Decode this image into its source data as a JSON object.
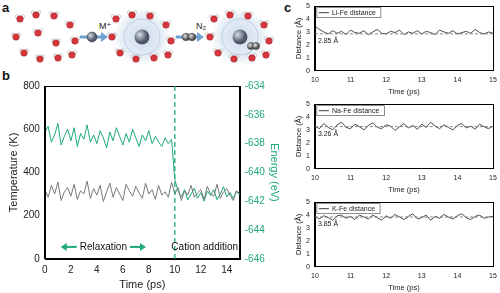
{
  "panel_labels": [
    "a",
    "b",
    "c"
  ],
  "diagram": {
    "labels": [
      "M⁺",
      "N₂"
    ]
  },
  "chart_data": [
    {
      "type": "line",
      "x": [
        0,
        0.25,
        0.5,
        0.75,
        1,
        1.25,
        1.5,
        1.75,
        2,
        2.25,
        2.5,
        2.75,
        3,
        3.25,
        3.5,
        3.75,
        4,
        4.25,
        4.5,
        4.75,
        5,
        5.25,
        5.5,
        5.75,
        6,
        6.25,
        6.5,
        6.75,
        7,
        7.25,
        7.5,
        7.75,
        8,
        8.25,
        8.5,
        8.75,
        9,
        9.25,
        9.5,
        9.75,
        10,
        10.25,
        10.5,
        10.75,
        11,
        11.25,
        11.5,
        11.75,
        12,
        12.25,
        12.5,
        12.75,
        13,
        13.25,
        13.5,
        13.75,
        14,
        14.25,
        14.5,
        14.75,
        15
      ],
      "xlabel": "Time (ps)",
      "ylabel": "Temperature (K)",
      "y2label": "Energy (eV)",
      "xlim": [
        0,
        15
      ],
      "xticks": [
        0,
        2,
        4,
        6,
        8,
        10,
        12,
        14
      ],
      "ylim": [
        0,
        800
      ],
      "yticks": [
        0,
        200,
        400,
        600,
        800
      ],
      "y2lim": [
        -646,
        -634
      ],
      "y2ticks": [
        -646,
        -644,
        -642,
        -640,
        -638,
        -636,
        -634
      ],
      "grid": false,
      "series": [
        {
          "color": "#7a7a7a",
          "values": [
            320,
            285,
            340,
            300,
            355,
            270,
            310,
            330,
            290,
            345,
            275,
            315,
            300,
            360,
            280,
            325,
            295,
            340,
            265,
            310,
            350,
            285,
            330,
            300,
            270,
            345,
            315,
            290,
            335,
            305,
            280,
            350,
            300,
            320,
            275,
            340,
            295,
            310,
            285,
            355,
            300,
            330,
            270,
            315,
            295,
            340,
            285,
            305,
            320,
            275,
            335,
            300,
            290,
            345,
            280,
            310,
            325,
            295,
            270,
            315,
            300
          ]
        },
        {
          "color": "#1fa97c",
          "axis": "y2",
          "values": [
            -637.2,
            -636.8,
            -637.9,
            -637.4,
            -636.6,
            -638.1,
            -637.5,
            -637.0,
            -637.8,
            -636.9,
            -638.2,
            -637.3,
            -637.7,
            -636.7,
            -637.9,
            -637.4,
            -638.0,
            -637.1,
            -637.6,
            -638.3,
            -637.2,
            -637.8,
            -636.9,
            -637.5,
            -638.1,
            -637.3,
            -637.9,
            -637.0,
            -637.6,
            -638.2,
            -637.4,
            -637.8,
            -637.1,
            -638.0,
            -637.5,
            -637.9,
            -638.2,
            -637.6,
            -638.0,
            -637.7,
            -640.5,
            -641.3,
            -641.7,
            -641.2,
            -641.9,
            -641.5,
            -641.1,
            -641.8,
            -641.4,
            -642.0,
            -641.3,
            -641.6,
            -641.2,
            -641.9,
            -641.5,
            -641.0,
            -641.7,
            -641.4,
            -641.8,
            -641.3,
            -641.6
          ]
        }
      ],
      "annotations": [
        {
          "type": "vline",
          "x": 10
        },
        {
          "text": "Relaxation",
          "x": 4.5,
          "y": 55
        },
        {
          "text": "Cation addition",
          "x": 12.3,
          "y": 55
        }
      ]
    },
    {
      "type": "line",
      "x": [
        10,
        10.125,
        10.25,
        10.375,
        10.5,
        10.625,
        10.75,
        10.875,
        11,
        11.125,
        11.25,
        11.375,
        11.5,
        11.625,
        11.75,
        11.875,
        12,
        12.125,
        12.25,
        12.375,
        12.5,
        12.625,
        12.75,
        12.875,
        13,
        13.125,
        13.25,
        13.375,
        13.5,
        13.625,
        13.75,
        13.875,
        14,
        14.125,
        14.25,
        14.375,
        14.5,
        14.625,
        14.75,
        14.875,
        15
      ],
      "xlabel": "Time (ps)",
      "ylabel": "Distance (Å)",
      "xlim": [
        10,
        15
      ],
      "xticks": [
        10,
        11,
        12,
        13,
        14,
        15
      ],
      "ylim": [
        0,
        5
      ],
      "yticks": [
        0,
        1,
        2,
        3,
        4,
        5
      ],
      "grid": false,
      "legend": "upper left",
      "series": [
        {
          "name": "Li-Fe distance",
          "color": "#3a3a3a",
          "values": [
            3.45,
            3.2,
            3.0,
            2.85,
            3.1,
            2.9,
            3.05,
            2.8,
            3.15,
            2.95,
            2.9,
            3.1,
            2.8,
            3.0,
            3.2,
            2.9,
            2.85,
            3.05,
            2.95,
            3.15,
            2.8,
            3.0,
            2.9,
            3.1,
            2.85,
            3.05,
            2.95,
            2.8,
            3.15,
            3.0,
            2.9,
            3.1,
            2.85,
            2.95,
            3.05,
            2.9,
            3.2,
            2.95,
            2.85,
            3.0,
            2.9
          ]
        }
      ],
      "annotations": [
        {
          "type": "hline",
          "y": 2.85,
          "text": "2.85 Å"
        }
      ]
    },
    {
      "type": "line",
      "x": [
        10,
        10.125,
        10.25,
        10.375,
        10.5,
        10.625,
        10.75,
        10.875,
        11,
        11.125,
        11.25,
        11.375,
        11.5,
        11.625,
        11.75,
        11.875,
        12,
        12.125,
        12.25,
        12.375,
        12.5,
        12.625,
        12.75,
        12.875,
        13,
        13.125,
        13.25,
        13.375,
        13.5,
        13.625,
        13.75,
        13.875,
        14,
        14.125,
        14.25,
        14.375,
        14.5,
        14.625,
        14.75,
        14.875,
        15
      ],
      "xlabel": "Time (ps)",
      "ylabel": "Distance (Å)",
      "xlim": [
        10,
        15
      ],
      "xticks": [
        10,
        11,
        12,
        13,
        14,
        15
      ],
      "ylim": [
        0,
        5
      ],
      "yticks": [
        0,
        1,
        2,
        3,
        4,
        5
      ],
      "grid": false,
      "legend": "upper left",
      "series": [
        {
          "name": "Na-Fe distance",
          "color": "#3a3a3a",
          "values": [
            3.3,
            3.1,
            3.5,
            3.2,
            3.0,
            3.4,
            3.6,
            3.2,
            3.1,
            3.45,
            3.25,
            3.0,
            3.35,
            3.55,
            3.2,
            3.1,
            3.4,
            3.3,
            2.95,
            3.25,
            3.5,
            3.15,
            3.35,
            3.05,
            3.45,
            3.2,
            3.6,
            3.3,
            3.1,
            3.4,
            3.2,
            3.0,
            3.35,
            3.5,
            3.15,
            3.3,
            3.05,
            3.45,
            3.25,
            3.1,
            3.3
          ]
        }
      ],
      "annotations": [
        {
          "type": "hline",
          "y": 3.26,
          "text": "3.26 Å"
        }
      ]
    },
    {
      "type": "line",
      "x": [
        10,
        10.125,
        10.25,
        10.375,
        10.5,
        10.625,
        10.75,
        10.875,
        11,
        11.125,
        11.25,
        11.375,
        11.5,
        11.625,
        11.75,
        11.875,
        12,
        12.125,
        12.25,
        12.375,
        12.5,
        12.625,
        12.75,
        12.875,
        13,
        13.125,
        13.25,
        13.375,
        13.5,
        13.625,
        13.75,
        13.875,
        14,
        14.125,
        14.25,
        14.375,
        14.5,
        14.625,
        14.75,
        14.875,
        15
      ],
      "xlabel": "Time (ps)",
      "ylabel": "Distance (Å)",
      "xlim": [
        10,
        15
      ],
      "xticks": [
        10,
        11,
        12,
        13,
        14,
        15
      ],
      "ylim": [
        0,
        5
      ],
      "yticks": [
        0,
        1,
        2,
        3,
        4,
        5
      ],
      "grid": false,
      "legend": "upper left",
      "series": [
        {
          "name": "K-Fe distance",
          "color": "#3a3a3a",
          "values": [
            3.9,
            3.7,
            3.95,
            3.8,
            3.6,
            3.95,
            4.0,
            3.75,
            3.9,
            3.65,
            4.0,
            3.85,
            3.7,
            4.0,
            3.8,
            3.6,
            3.95,
            3.75,
            4.05,
            3.85,
            3.65,
            3.9,
            4.1,
            3.7,
            3.8,
            4.0,
            3.6,
            3.9,
            3.75,
            4.05,
            3.85,
            3.7,
            3.95,
            4.1,
            3.8,
            3.65,
            3.9,
            4.0,
            3.75,
            3.85,
            3.9
          ]
        }
      ],
      "annotations": [
        {
          "type": "hline",
          "y": 3.85,
          "text": "3.85 Å"
        }
      ]
    }
  ]
}
